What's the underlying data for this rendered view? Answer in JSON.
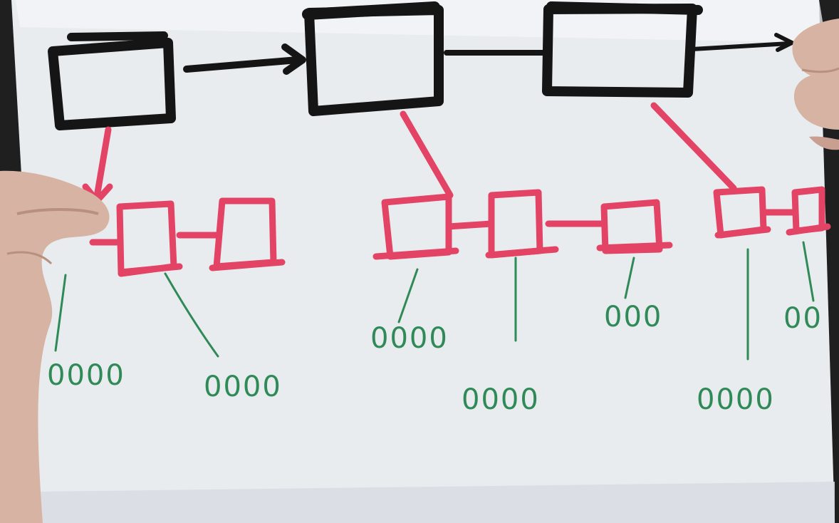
{
  "diagram": {
    "colors": {
      "background": "#1f1f1f",
      "paper": "#e9ecef",
      "paper_shadow": "#d9dde2",
      "top_boxes": "#151515",
      "child_nodes": "#e34364",
      "leaf_lines": "#2f8a57",
      "hand": "#d6b3a3"
    },
    "leaf_values": [
      {
        "id": "leaf-1",
        "text": "0000"
      },
      {
        "id": "leaf-2",
        "text": "0000"
      },
      {
        "id": "leaf-3",
        "text": "0000"
      },
      {
        "id": "leaf-4",
        "text": "0000"
      },
      {
        "id": "leaf-5",
        "text": "000"
      },
      {
        "id": "leaf-6",
        "text": "0000"
      },
      {
        "id": "leaf-7",
        "text": "00"
      }
    ],
    "icons": [
      "arrow-right-icon",
      "arrow-down-icon",
      "hand-icon"
    ]
  }
}
